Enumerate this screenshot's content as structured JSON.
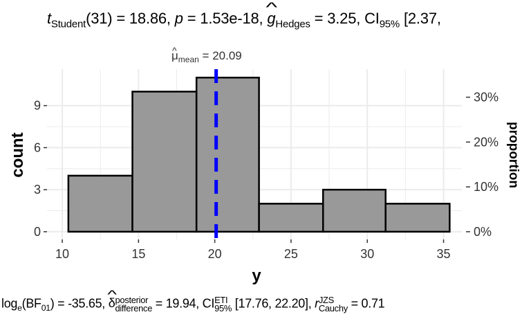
{
  "chart_data": {
    "type": "histogram",
    "subtitle": {
      "t_label": "t",
      "t_sub": "Student",
      "t_stat": "(31) = 18.86, ",
      "p_label": "p",
      "p_value": " = 1.53e-18, ",
      "g_label": "g",
      "g_sub": "Hedges",
      "g_value": " = 3.25, CI",
      "ci_sub": "95%",
      "ci_value": " [2.37,"
    },
    "caption": {
      "log_label": "log",
      "log_sub": "e",
      "bf_open": "(BF",
      "bf_sub": "01",
      "bf_value": ") = -35.65, ",
      "delta_label": "δ",
      "delta_sup": "posterior",
      "delta_sub": "difference",
      "delta_value": " = 19.94, CI",
      "ci_sup": "ETI",
      "ci_sub": "95%",
      "ci_value": " [17.76, 22.20], ",
      "r_label": "r",
      "r_sup": "JZS",
      "r_sub": "Cauchy",
      "r_value": " = 0.71"
    },
    "mean_label": {
      "mu": "μ",
      "sub": "mean",
      "value": " = 20.09"
    },
    "xlabel": "y",
    "ylabel": "count",
    "ylabel_right": "proportion",
    "xlim": [
      9,
      36.2
    ],
    "ylim": [
      -0.55,
      11.6
    ],
    "x_ticks": [
      10,
      15,
      20,
      25,
      30,
      35
    ],
    "x_tick_labels": [
      "10",
      "15",
      "20",
      "25",
      "30",
      "35"
    ],
    "y_ticks": [
      0,
      3,
      6,
      9
    ],
    "y_tick_labels": [
      "0",
      "3",
      "6",
      "9"
    ],
    "y2_ticks": [
      0,
      3.2,
      6.4,
      9.6
    ],
    "y2_tick_labels": [
      "0%",
      "10%",
      "20%",
      "30%"
    ],
    "bins": [
      {
        "x0": 10.4,
        "x1": 14.6,
        "count": 4
      },
      {
        "x0": 14.6,
        "x1": 18.8,
        "count": 10
      },
      {
        "x0": 18.8,
        "x1": 22.9,
        "count": 11
      },
      {
        "x0": 22.9,
        "x1": 27.1,
        "count": 2
      },
      {
        "x0": 27.1,
        "x1": 31.2,
        "count": 3
      },
      {
        "x0": 31.2,
        "x1": 35.4,
        "count": 2
      }
    ],
    "mean": 20.09,
    "grid": true,
    "colors": {
      "bar_fill": "#999999",
      "bar_stroke": "#000000",
      "mean_line": "#0000ff",
      "grid": "#ebebeb"
    }
  }
}
